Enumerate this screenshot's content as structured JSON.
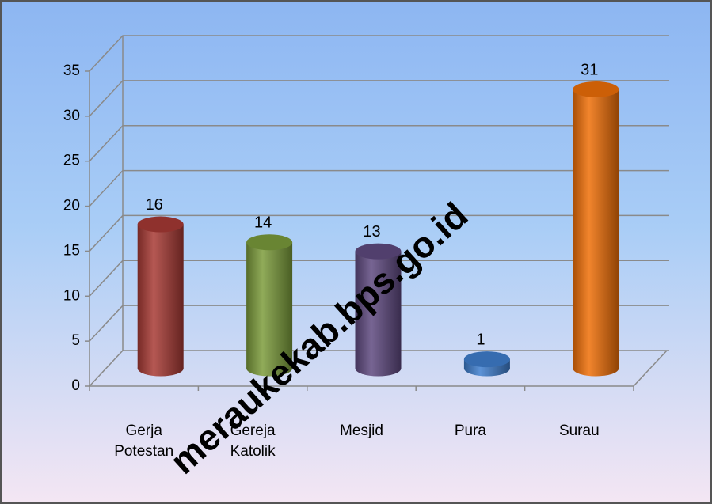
{
  "chart_data": {
    "type": "bar3d",
    "categories": [
      "Gerja Potestan",
      "Gereja Katolik",
      "Mesjid",
      "Pura",
      "Surau"
    ],
    "values": [
      16,
      14,
      13,
      1,
      31
    ],
    "colors": [
      "#a83a35",
      "#7c9c3c",
      "#5f4a80",
      "#3f7fcf",
      "#f07008"
    ],
    "ylim": [
      0,
      35
    ],
    "yticks": [
      0,
      5,
      10,
      15,
      20,
      25,
      30,
      35
    ],
    "grid": true,
    "watermark": "meraukekab.bps.go.id"
  }
}
